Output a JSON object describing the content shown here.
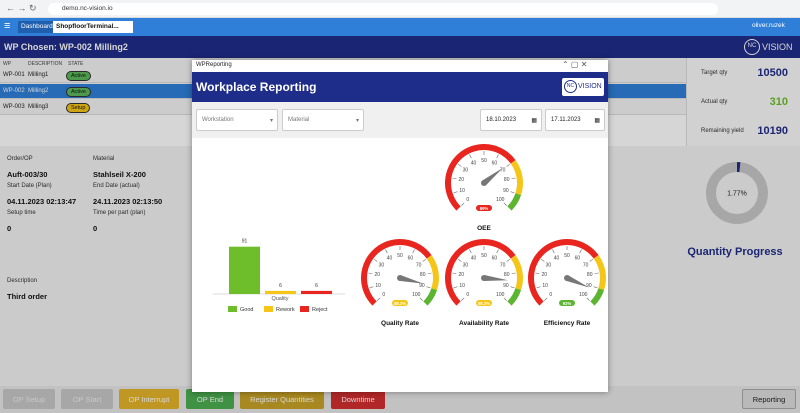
{
  "browser": {
    "url": "demo.nc-vision.io"
  },
  "app_bar": {
    "tabs": [
      "Dashboard",
      "ShopfloorTerminal..."
    ],
    "user": "oliver.ruzek"
  },
  "header": {
    "title": "WP Chosen: WP-002 Milling2",
    "logo": {
      "mark": "NC",
      "text": "VISION"
    }
  },
  "workplace_table": {
    "columns": [
      "WP",
      "DESCRIPTION",
      "STATE"
    ],
    "rows": [
      [
        "WP-001",
        "Milling1",
        "Active"
      ],
      [
        "WP-002",
        "Milling2",
        "Active"
      ],
      [
        "WP-003",
        "Milling3",
        "Setup"
      ]
    ]
  },
  "quantities": [
    {
      "label": "Target qty",
      "value": 10500
    },
    {
      "label": "Actual qty",
      "value": 310
    },
    {
      "label": "Remaining yield",
      "value": 10190
    }
  ],
  "order_details": [
    {
      "label": "Order/OP",
      "value": "Auft-003/30"
    },
    {
      "label": "Material",
      "value": "Stahlseil X-200"
    },
    {
      "label": "Start Date (Plan)",
      "value": "04.11.2023 02:13:47"
    },
    {
      "label": "End Date (actual)",
      "value": "24.11.2023 02:13:50"
    },
    {
      "label": "Setup time",
      "value": "0"
    },
    {
      "label": "Time per part (plan)",
      "value": "0"
    },
    {
      "label": "Description",
      "value": "Third order"
    }
  ],
  "buttons": [
    "OP Setup",
    "OP Start",
    "OP Interrupt",
    "OP End",
    "Register Quantities",
    "Downtime",
    "Reporting"
  ],
  "modal": {
    "window_title": "WPReporting",
    "title": "Workplace Reporting",
    "logo": {
      "mark": "NC",
      "text": "VISION"
    },
    "filters": [
      "Workstation",
      "Material",
      "18.10.2023",
      "17.11.2023"
    ]
  },
  "chart_data": [
    {
      "type": "bar",
      "categories": [
        "Quality"
      ],
      "ylim": [
        0,
        100
      ],
      "series": [
        {
          "name": "Good",
          "color": "#6ebd2a",
          "values": [
            91
          ]
        },
        {
          "name": "Rework",
          "color": "#f5c518",
          "values": [
            6
          ]
        },
        {
          "name": "Reject",
          "color": "#e8261f",
          "values": [
            6
          ]
        }
      ]
    },
    {
      "type": "gauge",
      "title": "OEE",
      "values": [
        69
      ],
      "value_labels": [
        "69%"
      ],
      "ylim": [
        0,
        100
      ],
      "yticks": [
        0,
        10,
        20,
        30,
        40,
        50,
        60,
        70,
        80,
        90,
        100
      ],
      "bands": [
        {
          "from": 0,
          "to": 70,
          "color": "#e8261f"
        },
        {
          "from": 70,
          "to": 90,
          "color": "#f5c518"
        },
        {
          "from": 90,
          "to": 100,
          "color": "#5cb531"
        }
      ]
    },
    {
      "type": "gauge",
      "title": "Quality Rate",
      "values": [
        88.3
      ],
      "value_labels": [
        "88.3%"
      ],
      "ylim": [
        0,
        100
      ],
      "yticks": [
        0,
        10,
        20,
        30,
        40,
        50,
        60,
        70,
        80,
        90,
        100
      ],
      "bands": [
        {
          "from": 0,
          "to": 70,
          "color": "#e8261f"
        },
        {
          "from": 70,
          "to": 90,
          "color": "#f5c518"
        },
        {
          "from": 90,
          "to": 100,
          "color": "#5cb531"
        }
      ]
    },
    {
      "type": "gauge",
      "title": "Availability Rate",
      "values": [
        85.3
      ],
      "value_labels": [
        "85.3%"
      ],
      "ylim": [
        0,
        100
      ],
      "yticks": [
        0,
        10,
        20,
        30,
        40,
        50,
        60,
        70,
        80,
        90,
        100
      ],
      "bands": [
        {
          "from": 0,
          "to": 70,
          "color": "#e8261f"
        },
        {
          "from": 70,
          "to": 90,
          "color": "#f5c518"
        },
        {
          "from": 90,
          "to": 100,
          "color": "#5cb531"
        }
      ]
    },
    {
      "type": "gauge",
      "title": "Efficiency Rate",
      "values": [
        92
      ],
      "value_labels": [
        "92%"
      ],
      "ylim": [
        0,
        100
      ],
      "yticks": [
        0,
        10,
        20,
        30,
        40,
        50,
        60,
        70,
        80,
        90,
        100
      ],
      "bands": [
        {
          "from": 0,
          "to": 70,
          "color": "#e8261f"
        },
        {
          "from": 70,
          "to": 90,
          "color": "#f5c518"
        },
        {
          "from": 90,
          "to": 100,
          "color": "#5cb531"
        }
      ]
    },
    {
      "type": "donut",
      "title": "Quantity Progress",
      "values": [
        1.77
      ],
      "value_labels": [
        "1.77%"
      ],
      "ylim": [
        0,
        100
      ],
      "color": "#1f2d8a"
    }
  ]
}
